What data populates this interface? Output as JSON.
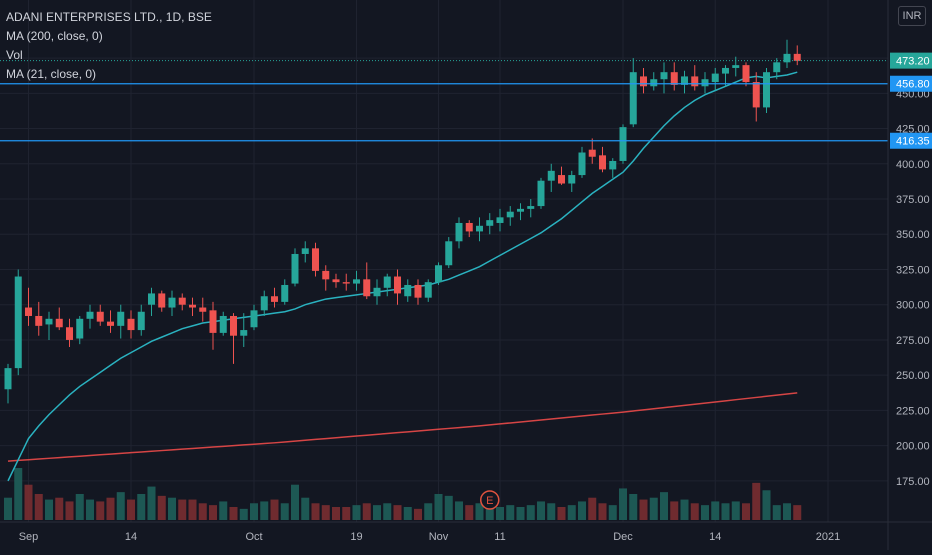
{
  "header": {
    "title": "ADANI ENTERPRISES LTD., 1D, BSE",
    "ma200_label": "MA (200, close, 0)",
    "vol_label": "Vol",
    "ma21_label": "MA (21, close, 0)",
    "currency": "INR"
  },
  "colors": {
    "up": "#26a69a",
    "down": "#ef5350",
    "ma21": "#2ab2c0",
    "ma200": "#d64545",
    "hline": "#2196f3",
    "grid": "#1f2330",
    "axis_text": "#b2b5be"
  },
  "chart_data": {
    "type": "candlestick",
    "ylim": [
      160,
      485
    ],
    "ticks_y": [
      175,
      200,
      225,
      250,
      275,
      300,
      325,
      350,
      375,
      400,
      425,
      450,
      475
    ],
    "price_labels": [
      {
        "value": 473.2,
        "text": "473.20",
        "kind": "last"
      },
      {
        "value": 456.8,
        "text": "456.80",
        "kind": "line"
      },
      {
        "value": 416.35,
        "text": "416.35",
        "kind": "line"
      }
    ],
    "horizontal_lines": [
      456.8,
      416.35
    ],
    "x_labels": [
      {
        "text": "Sep",
        "index": 2
      },
      {
        "text": "14",
        "index": 12
      },
      {
        "text": "Oct",
        "index": 24
      },
      {
        "text": "19",
        "index": 34
      },
      {
        "text": "Nov",
        "index": 42
      },
      {
        "text": "11",
        "index": 48
      },
      {
        "text": "Dec",
        "index": 60
      },
      {
        "text": "14",
        "index": 69
      },
      {
        "text": "2021",
        "index": 80
      }
    ],
    "ohlc": [
      [
        240,
        258,
        230,
        255
      ],
      [
        255,
        325,
        250,
        320
      ],
      [
        298,
        312,
        285,
        292
      ],
      [
        292,
        302,
        278,
        285
      ],
      [
        286,
        295,
        275,
        290
      ],
      [
        290,
        298,
        282,
        284
      ],
      [
        284,
        290,
        270,
        275
      ],
      [
        276,
        292,
        272,
        290
      ],
      [
        290,
        300,
        283,
        295
      ],
      [
        295,
        300,
        285,
        288
      ],
      [
        288,
        296,
        280,
        285
      ],
      [
        285,
        300,
        276,
        295
      ],
      [
        290,
        296,
        276,
        282
      ],
      [
        282,
        300,
        278,
        295
      ],
      [
        300,
        312,
        292,
        308
      ],
      [
        308,
        310,
        295,
        298
      ],
      [
        298,
        310,
        292,
        305
      ],
      [
        305,
        308,
        296,
        300
      ],
      [
        300,
        305,
        292,
        298
      ],
      [
        298,
        305,
        288,
        295
      ],
      [
        296,
        302,
        268,
        280
      ],
      [
        280,
        295,
        278,
        292
      ],
      [
        292,
        294,
        258,
        278
      ],
      [
        278,
        294,
        270,
        282
      ],
      [
        284,
        300,
        282,
        296
      ],
      [
        296,
        310,
        292,
        306
      ],
      [
        306,
        312,
        298,
        302
      ],
      [
        302,
        318,
        300,
        314
      ],
      [
        315,
        340,
        313,
        336
      ],
      [
        336,
        345,
        330,
        340
      ],
      [
        340,
        344,
        320,
        324
      ],
      [
        324,
        328,
        310,
        318
      ],
      [
        318,
        322,
        312,
        316
      ],
      [
        316,
        322,
        310,
        315
      ],
      [
        315,
        324,
        310,
        318
      ],
      [
        318,
        330,
        304,
        306
      ],
      [
        306,
        318,
        300,
        312
      ],
      [
        312,
        322,
        306,
        320
      ],
      [
        320,
        325,
        300,
        308
      ],
      [
        306,
        318,
        302,
        314
      ],
      [
        314,
        318,
        300,
        305
      ],
      [
        305,
        318,
        302,
        316
      ],
      [
        316,
        330,
        314,
        328
      ],
      [
        328,
        348,
        326,
        345
      ],
      [
        345,
        362,
        340,
        358
      ],
      [
        358,
        360,
        348,
        352
      ],
      [
        352,
        362,
        345,
        356
      ],
      [
        356,
        365,
        350,
        360
      ],
      [
        358,
        368,
        352,
        362
      ],
      [
        362,
        370,
        356,
        366
      ],
      [
        366,
        372,
        360,
        368
      ],
      [
        368,
        375,
        362,
        370
      ],
      [
        370,
        390,
        368,
        388
      ],
      [
        388,
        400,
        380,
        395
      ],
      [
        392,
        398,
        385,
        386
      ],
      [
        386,
        395,
        380,
        392
      ],
      [
        392,
        412,
        390,
        408
      ],
      [
        410,
        418,
        400,
        405
      ],
      [
        406,
        412,
        394,
        396
      ],
      [
        396,
        404,
        390,
        402
      ],
      [
        402,
        428,
        400,
        426
      ],
      [
        428,
        475,
        426,
        465
      ],
      [
        462,
        468,
        450,
        455
      ],
      [
        455,
        465,
        452,
        460
      ],
      [
        460,
        472,
        450,
        465
      ],
      [
        465,
        472,
        452,
        456
      ],
      [
        456,
        466,
        450,
        462
      ],
      [
        462,
        470,
        452,
        455
      ],
      [
        455,
        465,
        450,
        460
      ],
      [
        458,
        468,
        452,
        464
      ],
      [
        464,
        470,
        455,
        468
      ],
      [
        468,
        476,
        462,
        470
      ],
      [
        470,
        472,
        455,
        458
      ],
      [
        458,
        465,
        430,
        440
      ],
      [
        440,
        468,
        436,
        465
      ],
      [
        465,
        475,
        460,
        472
      ],
      [
        472,
        488,
        468,
        478
      ],
      [
        478,
        484,
        470,
        473
      ]
    ],
    "volume": [
      60,
      140,
      95,
      70,
      55,
      60,
      50,
      70,
      55,
      50,
      60,
      75,
      55,
      70,
      90,
      65,
      60,
      55,
      55,
      45,
      40,
      50,
      35,
      30,
      45,
      50,
      55,
      45,
      95,
      60,
      45,
      40,
      35,
      35,
      40,
      45,
      40,
      45,
      40,
      35,
      30,
      45,
      70,
      65,
      50,
      40,
      45,
      40,
      35,
      40,
      35,
      40,
      50,
      45,
      35,
      40,
      50,
      60,
      45,
      40,
      85,
      70,
      55,
      60,
      75,
      50,
      55,
      45,
      40,
      50,
      45,
      50,
      45,
      100,
      80,
      40,
      45,
      40
    ],
    "ma21": [
      175,
      190,
      205,
      214,
      222,
      229,
      236,
      242,
      247,
      252,
      257,
      262,
      266,
      270,
      274,
      277,
      280,
      283,
      285,
      287,
      288,
      289,
      290,
      291,
      292,
      293,
      294,
      295,
      297,
      300,
      302,
      304,
      305,
      306,
      307,
      308,
      309,
      310,
      311,
      312,
      313,
      314,
      316,
      318,
      321,
      324,
      327,
      331,
      335,
      339,
      343,
      347,
      351,
      356,
      361,
      367,
      373,
      379,
      384,
      389,
      394,
      402,
      411,
      419,
      427,
      434,
      440,
      445,
      449,
      452,
      455,
      458,
      461,
      462,
      461,
      462,
      463,
      465
    ],
    "ma200": [
      189,
      189.5,
      190,
      190.5,
      191,
      191.5,
      192,
      192.5,
      193,
      193.5,
      194,
      194.5,
      195,
      195.5,
      196,
      196.5,
      197,
      197.5,
      198,
      198.5,
      199,
      199.5,
      200,
      200.5,
      201,
      201.5,
      202,
      202.6,
      203.2,
      203.8,
      204.4,
      205,
      205.6,
      206.2,
      206.8,
      207.4,
      208,
      208.6,
      209.2,
      209.8,
      210.4,
      211,
      211.6,
      212.2,
      212.8,
      213.4,
      214,
      214.7,
      215.4,
      216.1,
      216.8,
      217.5,
      218.2,
      218.9,
      219.6,
      220.3,
      221,
      221.7,
      222.4,
      223.1,
      223.8,
      224.6,
      225.4,
      226.2,
      227,
      227.8,
      228.6,
      229.4,
      230.2,
      231,
      231.8,
      232.6,
      233.4,
      234.2,
      235,
      235.8,
      236.6,
      237.4
    ],
    "earnings_marker": {
      "text": "E",
      "index": 47
    }
  }
}
